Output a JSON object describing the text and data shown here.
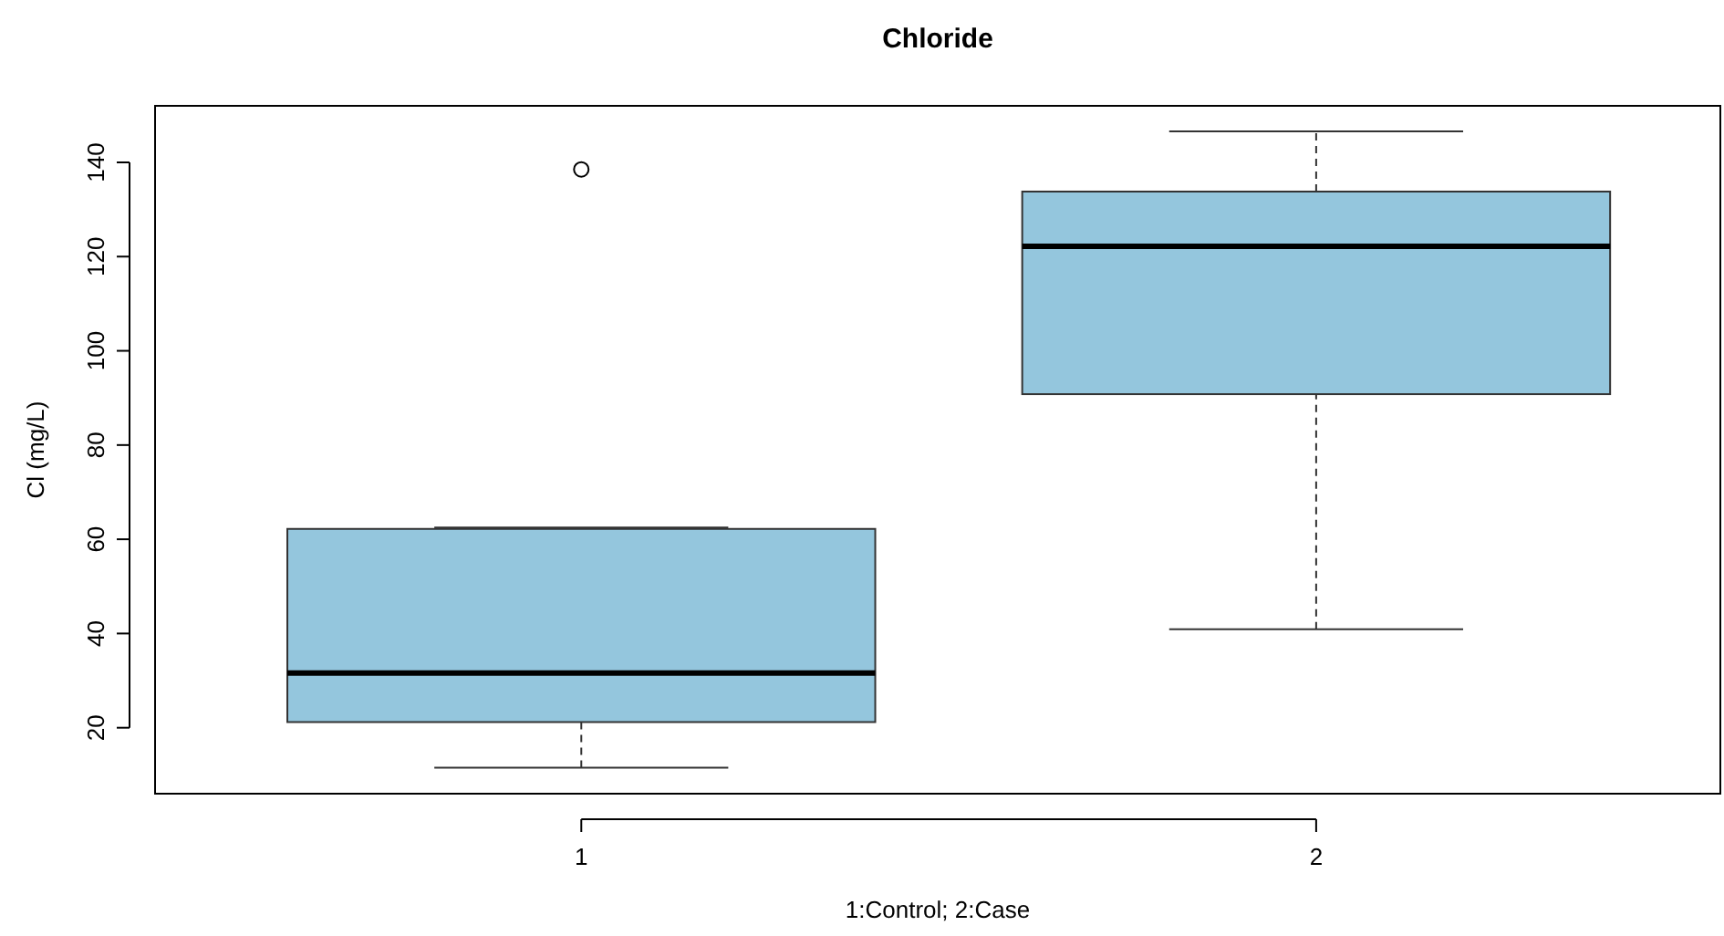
{
  "chart_data": {
    "type": "box",
    "title": "Chloride",
    "xlabel": "1:Control; 2:Case",
    "ylabel": "Cl (mg/L)",
    "categories": [
      "1",
      "2"
    ],
    "boxes": [
      {
        "low": 11.5,
        "q1": 21.2,
        "median": 31.6,
        "q3": 62.2,
        "high": 62.5,
        "outliers": [
          138.5
        ]
      },
      {
        "low": 40.9,
        "q1": 90.8,
        "median": 122.2,
        "q3": 133.8,
        "high": 146.6
      }
    ],
    "color": "#94c6dd",
    "ylim": [
      6,
      152
    ],
    "yticks": [
      20,
      40,
      60,
      80,
      100,
      120,
      140
    ],
    "line_style": "dashed"
  }
}
